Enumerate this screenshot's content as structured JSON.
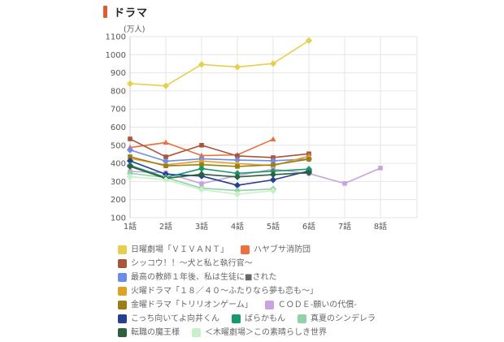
{
  "page": {
    "title": "ドラマ",
    "accent_color": "#dd5a32",
    "background_color": "#ffffff"
  },
  "chart_data": {
    "type": "line",
    "title": "ドラマ",
    "unit_label": "(万人)",
    "xlabel": "",
    "ylabel": "万人",
    "ylim": [
      100,
      1100
    ],
    "grid": true,
    "legend_position": "bottom",
    "x_tick_labels": [
      "1話",
      "2話",
      "3話",
      "4話",
      "5話",
      "6話",
      "7話",
      "8話"
    ],
    "y_ticks": [
      100,
      200,
      300,
      400,
      500,
      600,
      700,
      800,
      900,
      1000,
      1100
    ],
    "values_note": "viewership in 万人 (ten-thousands), estimated from plot",
    "series": [
      {
        "name": "日曜劇場「ＶＩＶＡＮＴ」",
        "color": "#e7cf4d",
        "marker": "diamond",
        "values": [
          840,
          828,
          946,
          932,
          951,
          1078
        ]
      },
      {
        "name": "ハヤブサ消防団",
        "color": "#e8713f",
        "marker": "triangle",
        "values": [
          487,
          515,
          443,
          447,
          533
        ]
      },
      {
        "name": "シッコウ！！～犬と私と執行官～",
        "color": "#aa5439",
        "marker": "square",
        "values": [
          535,
          436,
          500,
          441,
          432,
          453
        ]
      },
      {
        "name": "最高の教師１年後、私は生徒に■された",
        "color": "#6d8ce8",
        "marker": "diamond",
        "values": [
          474,
          412,
          425,
          418,
          414,
          424
        ]
      },
      {
        "name": "火曜ドラマ「１８／４０～ふたりなら夢も恋も～」",
        "color": "#dba428",
        "marker": "triangle",
        "values": [
          427,
          391,
          413,
          399,
          387,
          440
        ]
      },
      {
        "name": "金曜ドラマ「トリリオンゲーム」",
        "color": "#9d7e12",
        "marker": "square",
        "values": [
          437,
          386,
          393,
          383,
          392,
          423
        ]
      },
      {
        "name": "ＣＯＤＥ-願いの代償-",
        "color": "#c9a3dd",
        "marker": "square",
        "values": [
          355,
          348,
          288,
          333,
          368,
          344,
          289,
          374
        ]
      },
      {
        "name": "こっち向いてよ向井くん",
        "color": "#24408f",
        "marker": "diamond",
        "values": [
          414,
          340,
          330,
          279,
          309,
          358
        ]
      },
      {
        "name": "ばらかもん",
        "color": "#17996b",
        "marker": "diamond",
        "values": [
          389,
          322,
          371,
          345,
          357,
          368
        ]
      },
      {
        "name": "真夏のシンデレラ",
        "color": "#90d3a8",
        "marker": "diamond",
        "values": [
          345,
          322,
          263,
          250,
          258
        ]
      },
      {
        "name": "転職の魔王様",
        "color": "#2e5f3f",
        "marker": "diamond",
        "values": [
          383,
          317,
          340,
          325,
          338,
          348
        ]
      },
      {
        "name": "＜木曜劇場＞この素晴らしき世界",
        "color": "#c9efc9",
        "marker": "diamond",
        "values": [
          326,
          310,
          255,
          230,
          248
        ]
      }
    ],
    "legend_rows": [
      [
        0,
        1
      ],
      [
        2
      ],
      [
        3
      ],
      [
        4
      ],
      [
        5,
        6
      ],
      [
        7,
        8,
        9
      ],
      [
        10,
        11
      ]
    ]
  }
}
